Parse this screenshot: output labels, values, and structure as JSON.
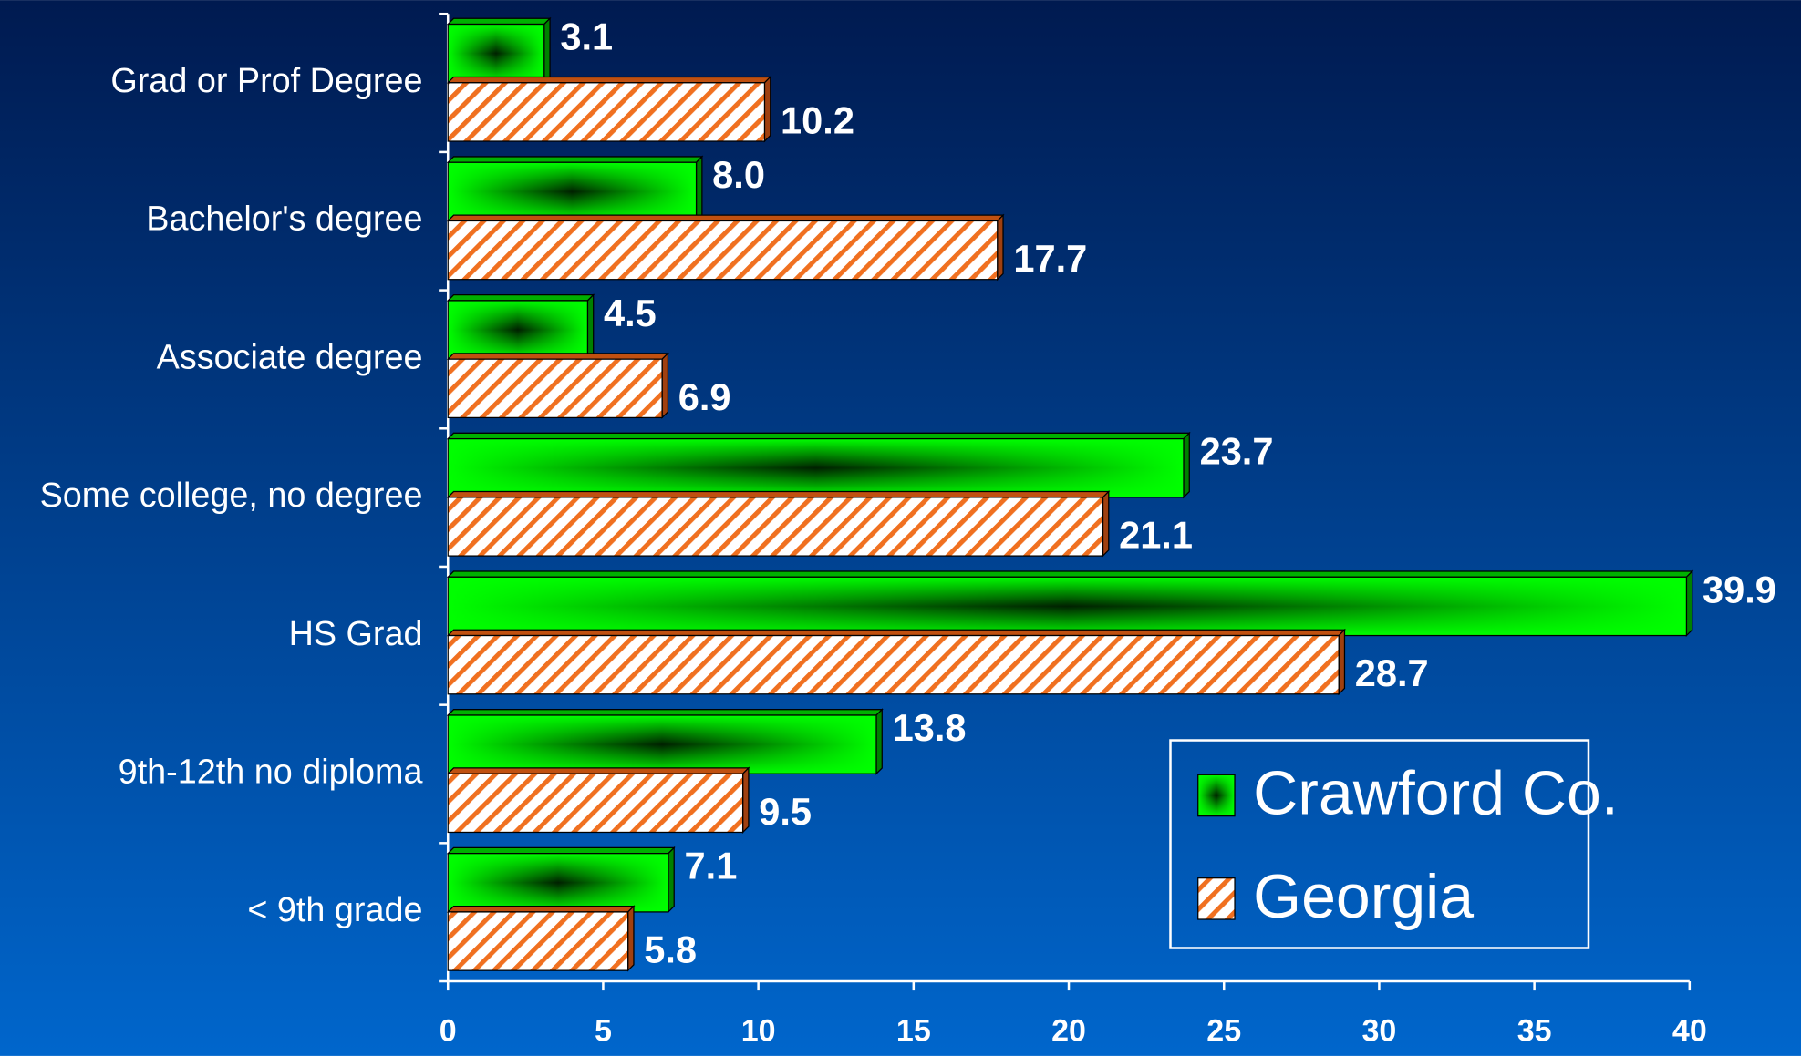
{
  "chart_data": {
    "type": "hbar",
    "categories": [
      "Grad or Prof Degree",
      "Bachelor's degree",
      "Associate degree",
      "Some college, no degree",
      "HS Grad",
      "9th-12th no diploma",
      "< 9th grade"
    ],
    "series": [
      {
        "name": "Crawford Co.",
        "color": "#00ff00",
        "values": [
          3.1,
          8.0,
          4.5,
          23.7,
          39.9,
          13.8,
          7.1
        ],
        "value_labels": [
          "3.1",
          "8.0",
          "4.5",
          "23.7",
          "39.9",
          "13.8",
          "7.1"
        ]
      },
      {
        "name": "Georgia",
        "color": "#f07020",
        "values": [
          10.2,
          17.7,
          6.9,
          21.1,
          28.7,
          9.5,
          5.8
        ],
        "value_labels": [
          "10.2",
          "17.7",
          "6.9",
          "21.1",
          "28.7",
          "9.5",
          "5.8"
        ]
      }
    ],
    "xlim": [
      0,
      40
    ],
    "xticks": [
      0,
      5,
      10,
      15,
      20,
      25,
      30,
      35,
      40
    ],
    "legend": "lower right"
  }
}
